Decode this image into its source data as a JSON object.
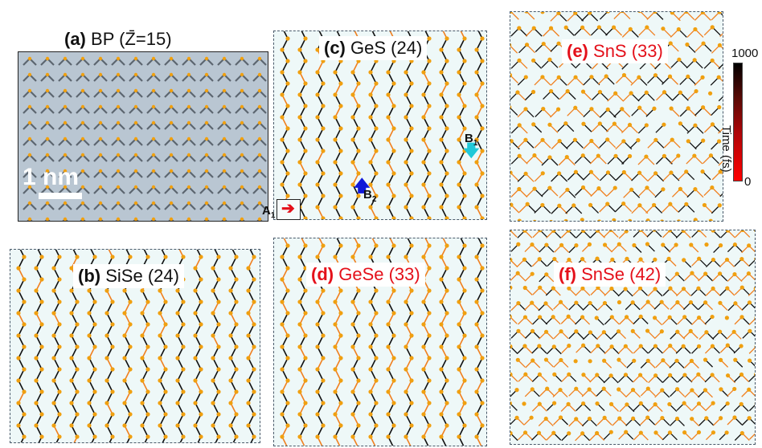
{
  "panels": {
    "a": {
      "tag": "(a)",
      "name": "BP",
      "zbar": "Z̄=15",
      "scale_label": "1 nm"
    },
    "b": {
      "tag": "(b)",
      "name": "SiSe",
      "value": "(24)"
    },
    "c": {
      "tag": "(c)",
      "name": "GeS",
      "value": "(24)"
    },
    "d": {
      "tag": "(d)",
      "name": "GeSe",
      "value": "(33)"
    },
    "e": {
      "tag": "(e)",
      "name": "SnS",
      "value": "(33)"
    },
    "f": {
      "tag": "(f)",
      "name": "SnSe",
      "value": "(42)"
    }
  },
  "sites": {
    "a1": "A",
    "a1_sub": "1",
    "b1": "B",
    "b1_sub": "1",
    "b2": "B",
    "b2_sub": "2"
  },
  "colorbar": {
    "max": "1000",
    "min": "0",
    "title": "Time (fs)",
    "colors": [
      "#000000",
      "#ff0000"
    ]
  },
  "colors": {
    "atom": "#f0a010",
    "bond_old": "#111111",
    "bond_new": "#f08020",
    "label_red": "#e4101a"
  }
}
